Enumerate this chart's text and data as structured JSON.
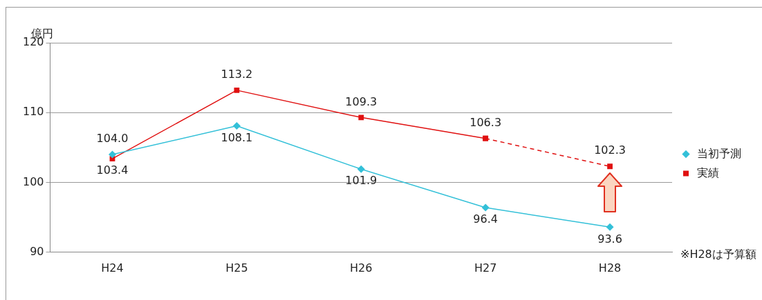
{
  "chart_data": {
    "type": "line",
    "ylabel": "億円",
    "categories": [
      "H24",
      "H25",
      "H26",
      "H27",
      "H28"
    ],
    "series": [
      {
        "name": "当初予測",
        "color": "#33c0d8",
        "marker": "diamond",
        "values": [
          104.0,
          108.1,
          101.9,
          96.4,
          93.6
        ],
        "value_labels": [
          "104.0",
          "108.1",
          "101.9",
          "96.4",
          "93.6"
        ]
      },
      {
        "name": "実績",
        "color": "#e01010",
        "marker": "square",
        "values": [
          103.4,
          113.2,
          109.3,
          106.3,
          null
        ],
        "value_labels": [
          "103.4",
          "113.2",
          "109.3",
          "106.3",
          null
        ]
      },
      {
        "color": "#e01010",
        "marker": "square",
        "line_style": "dashed",
        "values": [
          null,
          null,
          null,
          106.3,
          102.3
        ],
        "value_labels": [
          null,
          null,
          null,
          null,
          "102.3"
        ]
      }
    ],
    "ylim": [
      90,
      120
    ],
    "yticks": [
      90,
      100,
      110,
      120
    ],
    "grid": "y",
    "legend": "right",
    "annotations": [
      "※H28は予算額"
    ]
  }
}
